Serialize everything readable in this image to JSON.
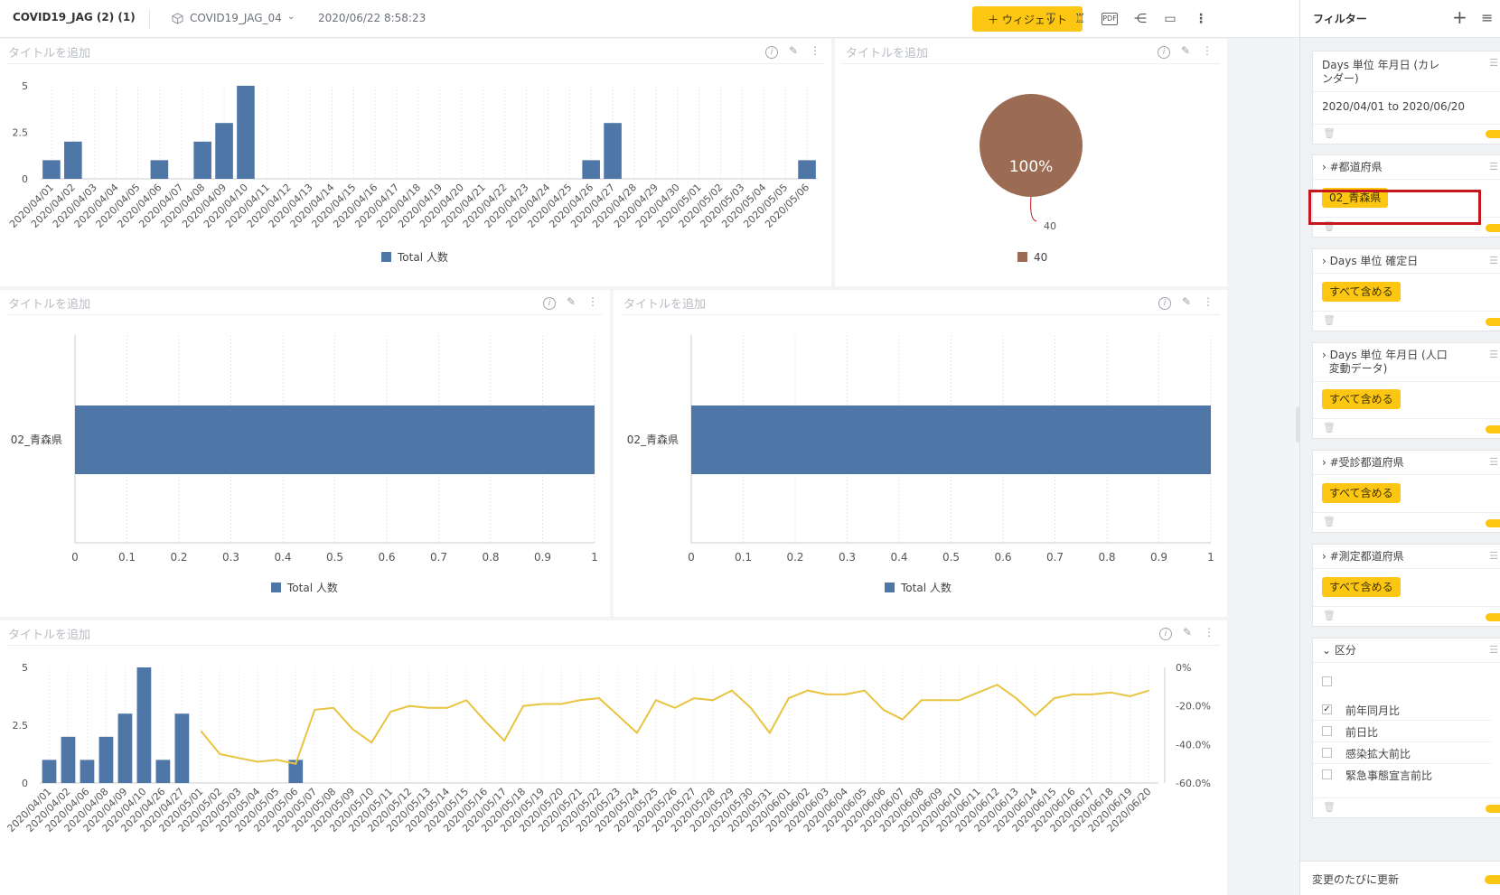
{
  "topbar": {
    "title": "COVID19_JAG (2) (1)",
    "model": "COVID19_JAG_04",
    "date": "2020/06/22 8:58:23",
    "widget_button": "＋ ウィジェット",
    "pdf_label": "PDF",
    "icons": [
      "text-icon",
      "brush-icon",
      "pdf-icon",
      "share-icon",
      "monitor-icon",
      "more-icon"
    ]
  },
  "widgets": {
    "title_placeholder": "タイトルを追加"
  },
  "colors": {
    "bar": "#4e76a6",
    "line": "#e8c440",
    "pie": "#9b6b53",
    "accent": "#fcc612",
    "highlight": "#c4161c"
  },
  "chart_data": [
    {
      "type": "bar",
      "categories": [
        "2020/04/01",
        "2020/04/02",
        "2020/04/03",
        "2020/04/04",
        "2020/04/05",
        "2020/04/06",
        "2020/04/07",
        "2020/04/08",
        "2020/04/09",
        "2020/04/10",
        "2020/04/11",
        "2020/04/12",
        "2020/04/13",
        "2020/04/14",
        "2020/04/15",
        "2020/04/16",
        "2020/04/17",
        "2020/04/18",
        "2020/04/19",
        "2020/04/20",
        "2020/04/21",
        "2020/04/22",
        "2020/04/23",
        "2020/04/24",
        "2020/04/25",
        "2020/04/26",
        "2020/04/27",
        "2020/04/28",
        "2020/04/29",
        "2020/04/30",
        "2020/05/01",
        "2020/05/02",
        "2020/05/03",
        "2020/05/04",
        "2020/05/05",
        "2020/05/06"
      ],
      "values": [
        1,
        2,
        0,
        0,
        0,
        1,
        0,
        2,
        3,
        5,
        0,
        0,
        0,
        0,
        0,
        0,
        0,
        0,
        0,
        0,
        0,
        0,
        0,
        0,
        0,
        1,
        3,
        0,
        0,
        0,
        0,
        0,
        0,
        0,
        0,
        1
      ],
      "yticks": [
        "0",
        "2.5",
        "5"
      ],
      "ylim": [
        0,
        5
      ],
      "legend": "Total 人数"
    },
    {
      "type": "pie",
      "slices": [
        {
          "label": "40",
          "value": 40,
          "percent": "100%"
        }
      ],
      "legend": "40"
    },
    {
      "type": "bar",
      "orientation": "horizontal",
      "categories": [
        "02_青森県"
      ],
      "values": [
        1
      ],
      "xticks": [
        "0",
        "0.1",
        "0.2",
        "0.3",
        "0.4",
        "0.5",
        "0.6",
        "0.7",
        "0.8",
        "0.9",
        "1"
      ],
      "xlim": [
        0,
        1
      ],
      "legend": "Total 人数"
    },
    {
      "type": "bar",
      "orientation": "horizontal",
      "categories": [
        "02_青森県"
      ],
      "values": [
        1
      ],
      "xticks": [
        "0",
        "0.1",
        "0.2",
        "0.3",
        "0.4",
        "0.5",
        "0.6",
        "0.7",
        "0.8",
        "0.9",
        "1"
      ],
      "xlim": [
        0,
        1
      ],
      "legend": "Total 人数"
    },
    {
      "type": "bar+line",
      "categories": [
        "2020/04/01",
        "2020/04/02",
        "2020/04/06",
        "2020/04/08",
        "2020/04/09",
        "2020/04/10",
        "2020/04/26",
        "2020/04/27",
        "2020/05/01",
        "2020/05/02",
        "2020/05/03",
        "2020/05/04",
        "2020/05/05",
        "2020/05/06",
        "2020/05/07",
        "2020/05/08",
        "2020/05/09",
        "2020/05/10",
        "2020/05/11",
        "2020/05/12",
        "2020/05/13",
        "2020/05/14",
        "2020/05/15",
        "2020/05/16",
        "2020/05/17",
        "2020/05/18",
        "2020/05/19",
        "2020/05/20",
        "2020/05/21",
        "2020/05/22",
        "2020/05/23",
        "2020/05/24",
        "2020/05/25",
        "2020/05/26",
        "2020/05/27",
        "2020/05/28",
        "2020/05/29",
        "2020/05/30",
        "2020/05/31",
        "2020/06/01",
        "2020/06/02",
        "2020/06/03",
        "2020/06/04",
        "2020/06/05",
        "2020/06/06",
        "2020/06/07",
        "2020/06/08",
        "2020/06/09",
        "2020/06/10",
        "2020/06/11",
        "2020/06/12",
        "2020/06/13",
        "2020/06/14",
        "2020/06/15",
        "2020/06/16",
        "2020/06/17",
        "2020/06/18",
        "2020/06/19",
        "2020/06/20"
      ],
      "bar_values": [
        1,
        2,
        1,
        2,
        3,
        5,
        1,
        3,
        0,
        0,
        0,
        0,
        0,
        1,
        0,
        0,
        0,
        0,
        0,
        0,
        0,
        0,
        0,
        0,
        0,
        0,
        0,
        0,
        0,
        0,
        0,
        0,
        0,
        0,
        0,
        0,
        0,
        0,
        0,
        0,
        0,
        0,
        0,
        0,
        0,
        0,
        0,
        0,
        0,
        0,
        0,
        0,
        0,
        0,
        0,
        0,
        0,
        0,
        0
      ],
      "line_values": [
        null,
        null,
        null,
        null,
        null,
        null,
        null,
        null,
        -33,
        -45,
        -47,
        -49,
        -48,
        -50,
        -22,
        -21,
        -32,
        -39,
        -23,
        -20,
        -21,
        -21,
        -17,
        -28,
        -38,
        -20,
        -19,
        -19,
        -17,
        -16,
        -25,
        -34,
        -17,
        -21,
        -16,
        -17,
        -12,
        -21,
        -34,
        -16,
        -12,
        -14,
        -14,
        -12,
        -22,
        -27,
        -17,
        -17,
        -17,
        -13,
        -9,
        -16,
        -25,
        -16,
        -14,
        -14,
        -13,
        -15,
        -12
      ],
      "yticks_left": [
        "0",
        "2.5",
        "5"
      ],
      "yticks_right": [
        "0%",
        "-20.0%",
        "-40.0%",
        "-60.0%"
      ],
      "ylim_left": [
        0,
        5
      ],
      "ylim_right": [
        -60,
        0
      ]
    }
  ],
  "filters": {
    "title": "フィルター",
    "cards": [
      {
        "header": "Days 単位 年月日 (カレ",
        "header2": "ンダー)",
        "value": "2020/04/01 to 2020/06/20"
      },
      {
        "header": "#都道府県",
        "chip": "02_青森県"
      },
      {
        "header": "Days 単位 確定日",
        "chip": "すべて含める"
      },
      {
        "header": "Days 単位 年月日 (人口",
        "header2": "変動データ)",
        "chip": "すべて含める"
      },
      {
        "header": "#受診都道府県",
        "chip": "すべて含める"
      },
      {
        "header": "#測定都道府県",
        "chip": "すべて含める"
      },
      {
        "header": "区分",
        "options": [
          {
            "label": "",
            "checked": false
          },
          {
            "label": "前年同月比",
            "checked": true
          },
          {
            "label": "前日比",
            "checked": false
          },
          {
            "label": "感染拡大前比",
            "checked": false
          },
          {
            "label": "緊急事態宣言前比",
            "checked": false
          }
        ]
      }
    ],
    "footer": "変更のたびに更新"
  }
}
